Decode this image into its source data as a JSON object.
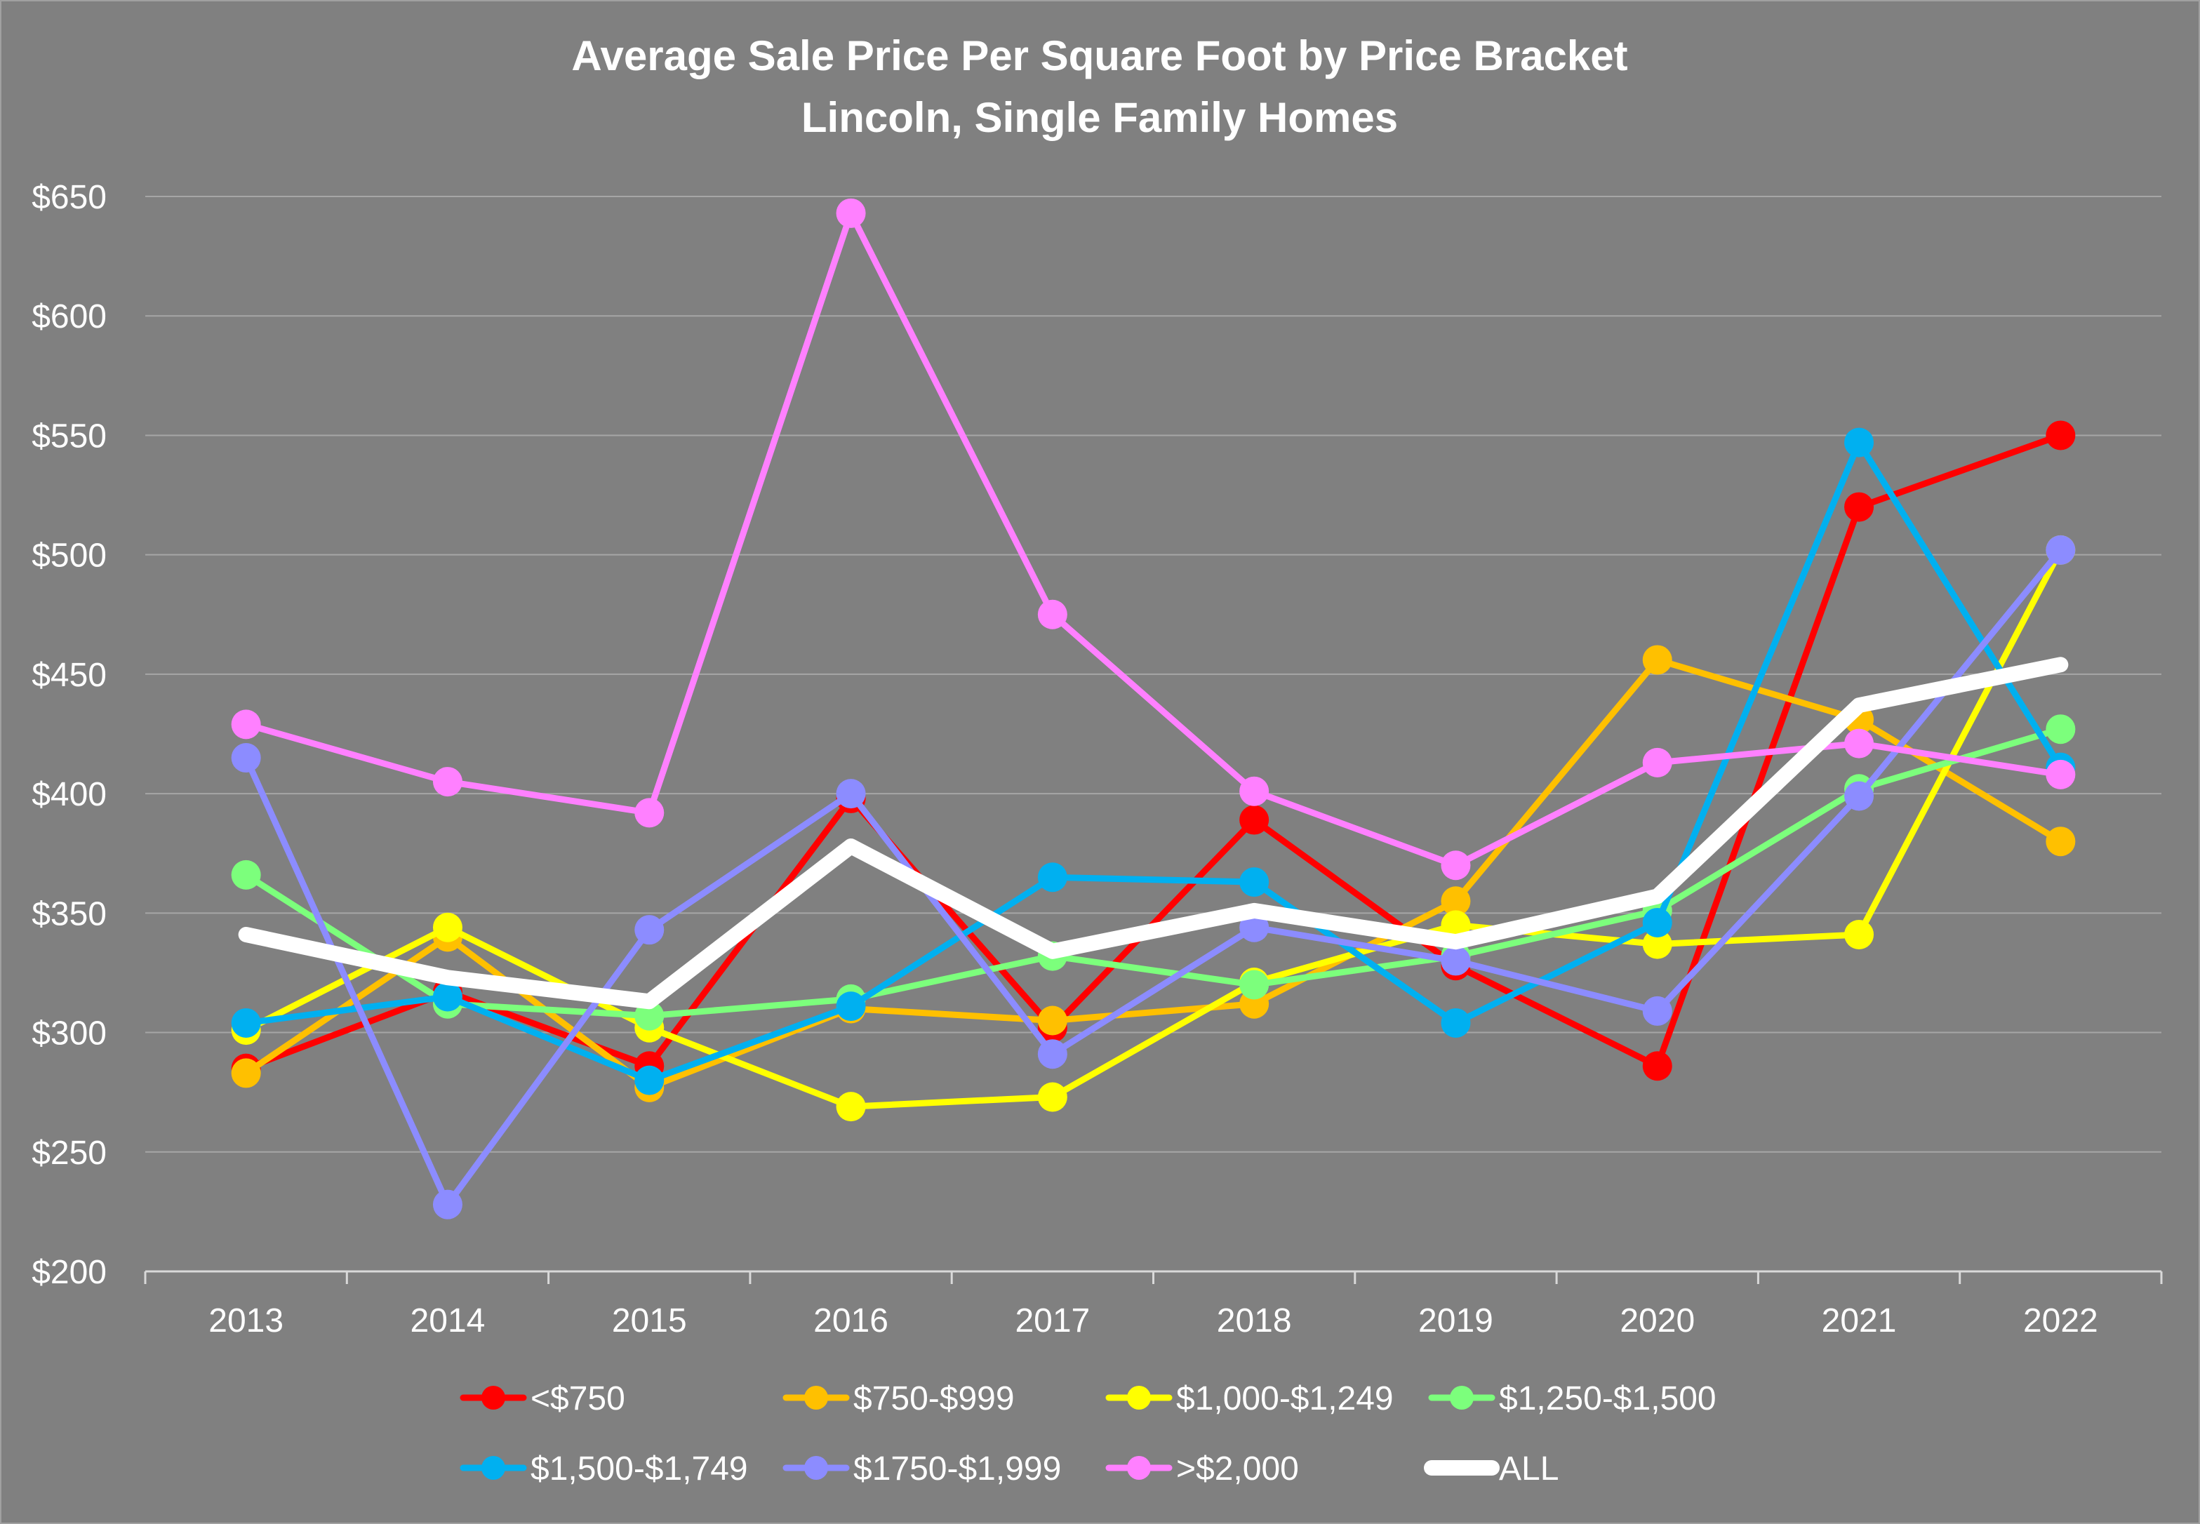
{
  "chart_data": {
    "type": "line",
    "title": "Average Sale Price Per Square Foot by Price Bracket",
    "subtitle": "Lincoln, Single Family Homes",
    "xlabel": "",
    "ylabel": "",
    "ylim": [
      200,
      650
    ],
    "y_ticks": [
      "$200",
      "$250",
      "$300",
      "$350",
      "$400",
      "$450",
      "$500",
      "$550",
      "$600",
      "$650"
    ],
    "y_tick_values": [
      200,
      250,
      300,
      350,
      400,
      450,
      500,
      550,
      600,
      650
    ],
    "grid": true,
    "legend_position": "bottom",
    "categories": [
      "2013",
      "2014",
      "2015",
      "2016",
      "2017",
      "2018",
      "2019",
      "2020",
      "2021",
      "2022"
    ],
    "series": [
      {
        "name": "<$750",
        "color": "#ff0000",
        "values": [
          285,
          317,
          286,
          398,
          302,
          389,
          328,
          286,
          520,
          550
        ]
      },
      {
        "name": "$750-$999",
        "color": "#ffc000",
        "values": [
          283,
          340,
          277,
          310,
          305,
          312,
          355,
          456,
          431,
          380
        ]
      },
      {
        "name": "$1,000-$1,249",
        "color": "#ffff00",
        "values": [
          301,
          344,
          302,
          269,
          273,
          321,
          345,
          337,
          341,
          502
        ]
      },
      {
        "name": "$1,250-$1,500",
        "color": "#7cff7c",
        "values": [
          366,
          312,
          307,
          314,
          332,
          320,
          332,
          351,
          402,
          427
        ]
      },
      {
        "name": "$1,500-$1,749",
        "color": "#00b0f0",
        "values": [
          304,
          315,
          280,
          311,
          365,
          363,
          304,
          346,
          547,
          411
        ]
      },
      {
        "name": "$1750-$1,999",
        "color": "#8c8cff",
        "values": [
          415,
          228,
          343,
          400,
          291,
          344,
          330,
          309,
          399,
          502
        ]
      },
      {
        "name": ">$2,000",
        "color": "#ff80ff",
        "values": [
          429,
          405,
          392,
          643,
          475,
          401,
          370,
          413,
          421,
          408
        ]
      },
      {
        "name": "ALL",
        "color": "#ffffff",
        "values": [
          341,
          323,
          313,
          378,
          334,
          351,
          338,
          357,
          437,
          454
        ],
        "thick": true,
        "markers": false
      }
    ]
  }
}
